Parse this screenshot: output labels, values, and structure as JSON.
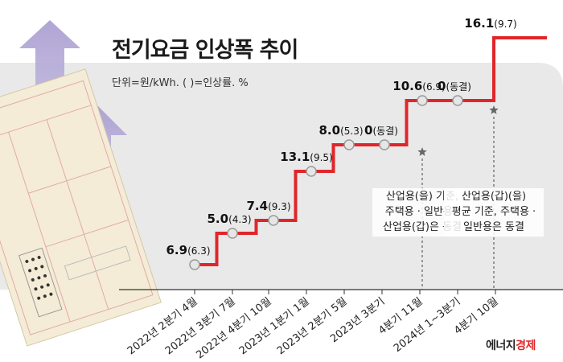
{
  "title": "전기요금 인상폭 추이",
  "unit_note": "단위=원/kWh. ( )=인상률. %",
  "logo": {
    "part1": "에너지",
    "part2": "경제"
  },
  "chart_data": {
    "type": "line",
    "step": true,
    "categories": [
      "2022년 2분기 4월",
      "2022년 3분기 7월",
      "2022년 4분기 10월",
      "2023년 1분기 1월",
      "2023년 2분기 5월",
      "2023년 3분기",
      "4분기 11월",
      "2024년 1~3분기",
      "4분기 10월"
    ],
    "values": [
      6.9,
      5.0,
      7.4,
      13.1,
      8.0,
      0,
      10.6,
      0,
      16.1
    ],
    "rates": [
      "6.3",
      "4.3",
      "9.3",
      "9.5",
      "5.3",
      "동결",
      "6.9",
      "동결",
      "9.7"
    ],
    "labels": [
      "6.9",
      "5.0",
      "7.4",
      "13.1",
      "8.0",
      "0",
      "10.6",
      "0",
      "16.1"
    ],
    "annotations": [
      {
        "category_index": 6,
        "lines": [
          "산업용(을) 기준,",
          "주택용 · 일반용 ·",
          "산업용(갑)은 동결"
        ]
      },
      {
        "category_index": 8,
        "lines": [
          "산업용(갑)(을)",
          "평균 기준, 주택용 ·",
          "일반용은 동결"
        ]
      }
    ],
    "colors": {
      "line": "#e0262a",
      "marker_fill": "#e6e6e6",
      "marker_stroke": "#9a9a9a",
      "panel": "#e9e9e9",
      "star": "#666666"
    }
  }
}
